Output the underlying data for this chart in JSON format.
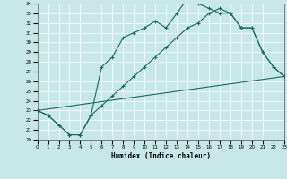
{
  "xlabel": "Humidex (Indice chaleur)",
  "background_color": "#c8e8e8",
  "line_color": "#1a6b5a",
  "xmin": 0,
  "xmax": 23,
  "ymin": 20,
  "ymax": 34,
  "line1_x": [
    0,
    1,
    2,
    3,
    4,
    5,
    6,
    7,
    8,
    9,
    10,
    11,
    12,
    13,
    14,
    15,
    16,
    17,
    18,
    19,
    20,
    21,
    22,
    23
  ],
  "line1_y": [
    23,
    22.5,
    21.5,
    20.5,
    20.5,
    22.5,
    27.5,
    28.5,
    30.5,
    31.0,
    31.5,
    32.2,
    31.5,
    33.0,
    34.5,
    34.0,
    33.5,
    33.0,
    33.0,
    31.5,
    31.5,
    29.0,
    27.5,
    26.5
  ],
  "line2_x": [
    0,
    1,
    2,
    3,
    4,
    5,
    6,
    7,
    8,
    9,
    10,
    11,
    12,
    13,
    14,
    15,
    16,
    17,
    18,
    19,
    20,
    21,
    22,
    23
  ],
  "line2_y": [
    23,
    22.5,
    21.5,
    20.5,
    20.5,
    22.5,
    23.5,
    24.5,
    25.5,
    26.5,
    27.5,
    28.5,
    29.5,
    30.5,
    31.5,
    32.0,
    33.0,
    33.5,
    33.0,
    31.5,
    31.5,
    29.0,
    27.5,
    26.5
  ],
  "line3_x": [
    0,
    23
  ],
  "line3_y": [
    23,
    26.5
  ]
}
